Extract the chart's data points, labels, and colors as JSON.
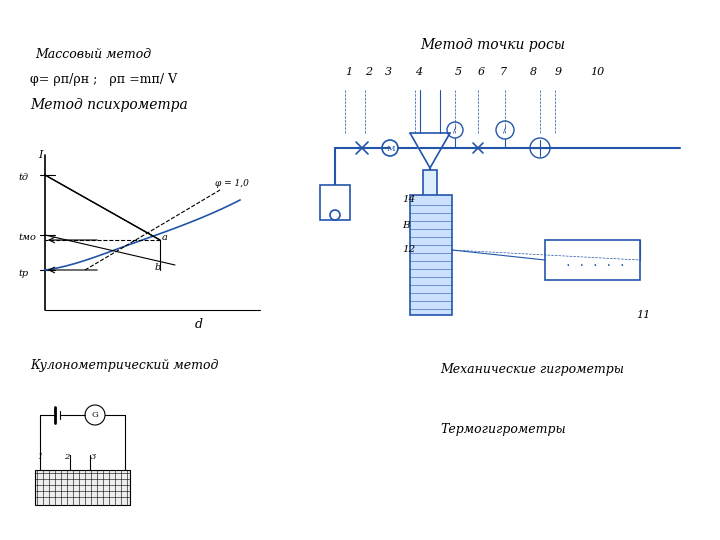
{
  "bg_color": "#ffffff",
  "line_color": "#2255aa",
  "dark_color": "#000000",
  "text_color": "#000000",
  "title_dew": "Метод точки росы",
  "label_mass": "Массовый метод",
  "formula": "φ= ρп/ρн ;   ρп =mп/ V",
  "label_psych": "Метод психрометра",
  "label_kulo": "Кулонометрический метод",
  "label_mech": "Механические гигрометры",
  "label_thermo": "Термогигрометры",
  "nums": [
    "1",
    "2",
    "3",
    "4",
    "5",
    "6",
    "7",
    "8",
    "9",
    "10"
  ],
  "nums2": [
    "14",
    "B",
    "12",
    "11"
  ]
}
